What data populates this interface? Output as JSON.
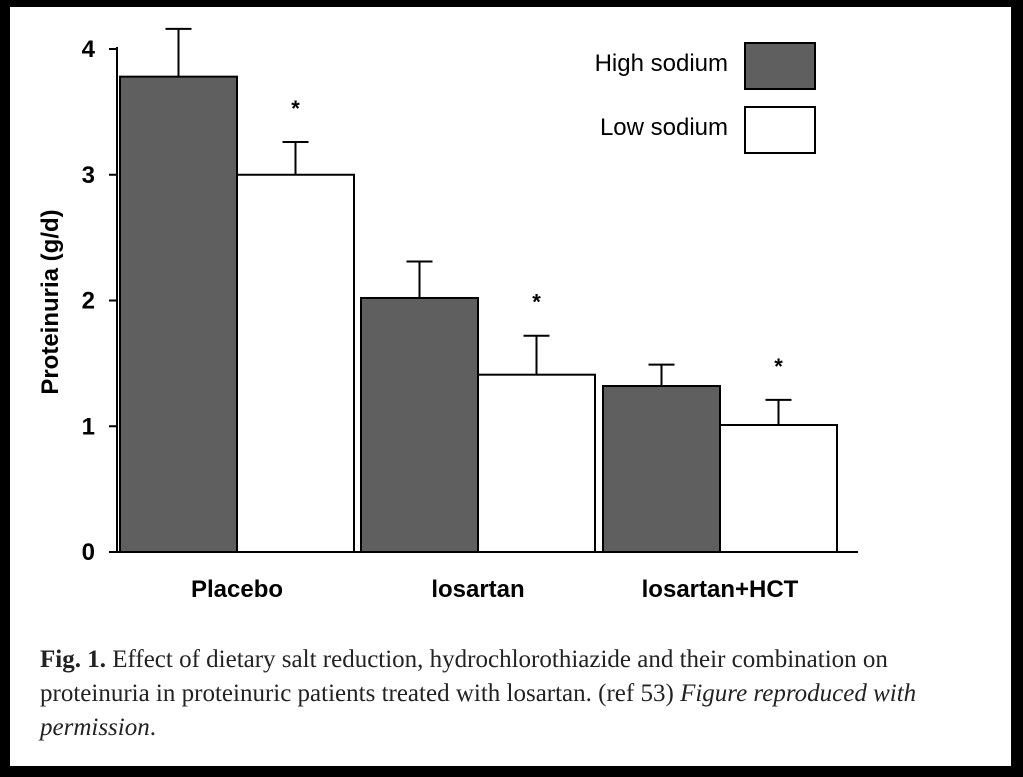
{
  "chart_data": {
    "type": "bar",
    "ylabel": "Proteinuria (g/d)",
    "ylim": [
      0,
      4
    ],
    "yticks": [
      0,
      1,
      2,
      3,
      4
    ],
    "categories": [
      "Placebo",
      "losartan",
      "losartan+HCT"
    ],
    "series": [
      {
        "name": "High sodium",
        "color": "#5f5f5f",
        "values": [
          3.78,
          2.02,
          1.32
        ],
        "error": [
          0.38,
          0.29,
          0.17
        ]
      },
      {
        "name": "Low sodium",
        "color": "#ffffff",
        "values": [
          3.0,
          1.41,
          1.01
        ],
        "error": [
          0.26,
          0.31,
          0.2
        ]
      }
    ],
    "annotations": [
      "*",
      "*",
      "*"
    ],
    "legend_position": "top-right",
    "grid": false
  },
  "caption": {
    "label": "Fig. 1.",
    "text": " Effect of dietary salt reduction, hydrochlorothiazide and their combination on proteinuria in proteinuric patients treated with losartan. (ref 53) ",
    "credit": "Figure reproduced with permission",
    "end": "."
  }
}
